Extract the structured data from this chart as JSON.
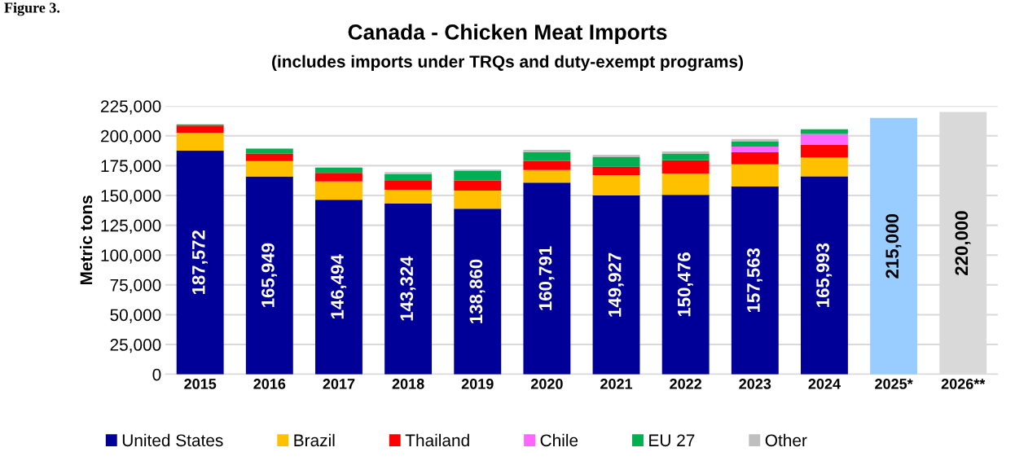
{
  "chart_data": {
    "type": "bar",
    "title": "Canada - Chicken Meat Imports",
    "subtitle": "(includes imports under TRQs and duty-exempt programs)",
    "ylabel": "Metric tons",
    "annotations": [
      "Figure 3."
    ],
    "categories": [
      "2015",
      "2016",
      "2017",
      "2018",
      "2019",
      "2020",
      "2021",
      "2022",
      "2023",
      "2024",
      "2025*",
      "2026**"
    ],
    "stacked": true,
    "grid": "y",
    "legend": "bottom",
    "ylim": [
      0,
      225000
    ],
    "yticks": [
      {
        "value": 0,
        "label": "0"
      },
      {
        "value": 25000,
        "label": "25,000"
      },
      {
        "value": 50000,
        "label": "50,000"
      },
      {
        "value": 75000,
        "label": "75,000"
      },
      {
        "value": 100000,
        "label": "100,000"
      },
      {
        "value": 125000,
        "label": "125,000"
      },
      {
        "value": 150000,
        "label": "150,000"
      },
      {
        "value": 175000,
        "label": "175,000"
      },
      {
        "value": 200000,
        "label": "200,000"
      },
      {
        "value": 225000,
        "label": "225,000"
      }
    ],
    "series": [
      {
        "name": "United States",
        "color": "#000099",
        "values": [
          187572,
          165949,
          146494,
          143324,
          138860,
          160791,
          149927,
          150476,
          157563,
          165993,
          null,
          null
        ],
        "value_labels": [
          "187,572",
          "165,949",
          "146,494",
          "143,324",
          "138,860",
          "160,791",
          "149,927",
          "150,476",
          "157,563",
          "165,993",
          null,
          null
        ]
      },
      {
        "name": "Brazil",
        "color": "#ffc000",
        "values": [
          15000,
          12900,
          15300,
          11500,
          15200,
          10500,
          17100,
          17900,
          18600,
          15800,
          null,
          null
        ]
      },
      {
        "name": "Thailand",
        "color": "#ff0000",
        "values": [
          6000,
          6400,
          7100,
          7500,
          8400,
          7500,
          7100,
          11100,
          10100,
          10800,
          null,
          null
        ]
      },
      {
        "name": "Chile",
        "color": "#ff66ff",
        "values": [
          0,
          0,
          0,
          0,
          0,
          0,
          0,
          0,
          4700,
          8900,
          null,
          null
        ]
      },
      {
        "name": "EU 27",
        "color": "#00b050",
        "values": [
          1000,
          4100,
          4500,
          5600,
          8000,
          7500,
          8000,
          5300,
          4400,
          4000,
          null,
          null
        ]
      },
      {
        "name": "Other",
        "color": "#bfbfbf",
        "values": [
          null,
          null,
          null,
          1600,
          1200,
          1900,
          1900,
          2100,
          1900,
          0,
          null,
          null
        ]
      },
      {
        "color": "#99ccff",
        "values": [
          null,
          null,
          null,
          null,
          null,
          null,
          null,
          null,
          null,
          null,
          215000,
          null
        ],
        "value_labels": [
          null,
          null,
          null,
          null,
          null,
          null,
          null,
          null,
          null,
          null,
          "215,000",
          null
        ]
      },
      {
        "color": "#d9d9d9",
        "values": [
          null,
          null,
          null,
          null,
          null,
          null,
          null,
          null,
          null,
          null,
          null,
          220000
        ],
        "value_labels": [
          null,
          null,
          null,
          null,
          null,
          null,
          null,
          null,
          null,
          null,
          null,
          "220,000"
        ]
      }
    ]
  }
}
